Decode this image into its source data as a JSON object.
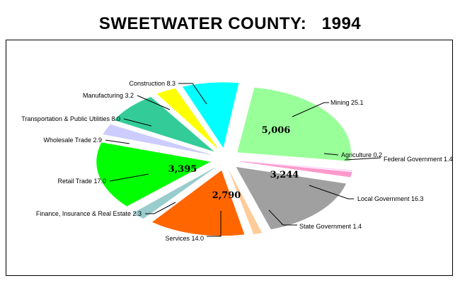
{
  "chart_data": {
    "type": "pie",
    "title": "SWEETWATER COUNTY:   1994",
    "slices": [
      {
        "label": "Mining",
        "percent": 25.1,
        "value": 5006,
        "value_label": "5,006",
        "color": "#99ff99"
      },
      {
        "label": "Agriculture",
        "percent": 0.2,
        "color": "#ffccff"
      },
      {
        "label": "Federal Government",
        "percent": 1.4,
        "color": "#ff99cc"
      },
      {
        "label": "Local Government",
        "percent": 16.3,
        "value": 3244,
        "value_label": "3,244",
        "color": "#a0a0a0"
      },
      {
        "label": "State Government",
        "percent": 1.4,
        "color": "#ffcc99"
      },
      {
        "label": "Services",
        "percent": 14.0,
        "value": 2790,
        "value_label": "2,790",
        "color": "#ff6600"
      },
      {
        "label": "Finance, Insurance & Real Estate",
        "percent": 2.3,
        "color": "#99cccc"
      },
      {
        "label": "Retail Trade",
        "percent": 17.0,
        "value": 3395,
        "value_label": "3,395",
        "color": "#00ff00"
      },
      {
        "label": "Wholesale Trade",
        "percent": 2.9,
        "color": "#ccccff"
      },
      {
        "label": "Transportation & Public Utilities",
        "percent": 8.0,
        "color": "#33cc99"
      },
      {
        "label": "Manufacturing",
        "percent": 3.2,
        "color": "#ffff00"
      },
      {
        "label": "Construction",
        "percent": 8.3,
        "color": "#00ffff"
      }
    ],
    "labels_text": [
      "Mining 25.1",
      "Agriculture 0.2",
      "Federal Government 1.4",
      "Local Government 16.3",
      "State Government 1.4",
      "Services 14.0",
      "Finance, Insurance & Real Estate 2.3",
      "Retail Trade 17.0",
      "Wholesale Trade 2.9",
      "Transportation & Public Utilities 8.0",
      "Manufacturing 3.2",
      "Construction 8.3"
    ]
  }
}
